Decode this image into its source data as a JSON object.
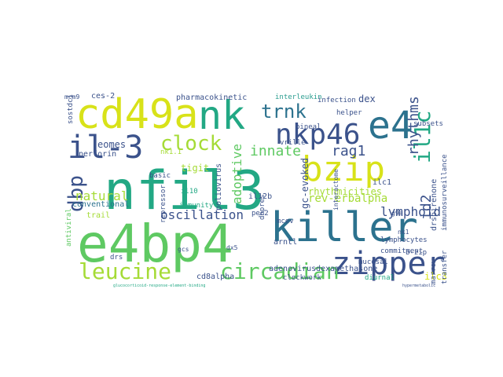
{
  "colors": {
    "yellow": "#d8e219",
    "lime": "#a5db36",
    "green": "#5ec962",
    "teal": "#22a884",
    "aqua": "#2a9d8f",
    "blue": "#2c728e",
    "indigo": "#3b528b",
    "purple": "#472d7b",
    "dark": "#440154"
  },
  "words": [
    "nfil3",
    "e4bp4",
    "killer",
    "bzip",
    "cd49a",
    "nk",
    "e4",
    "zipper",
    "il-3",
    "nkp46",
    "leucine",
    "circadian",
    "clock",
    "trnk",
    "il1c",
    "dbp",
    "rhythms",
    "innate",
    "rag1",
    "id2",
    "lymphoid",
    "rev-erbalpha",
    "natural",
    "oscillation",
    "adoptive",
    "eomes",
    "gc-evoked",
    "rhythmicities",
    "tigit",
    "ilc3",
    "cd8alpha",
    "perforin",
    "conventional",
    "pharmacokinetic",
    "interleukin",
    "dex",
    "ces-2",
    "adenovirus",
    "dexamethasone",
    "diurnal",
    "lymphocytes",
    "subsets",
    "arntl",
    "immunity",
    "commitment",
    "mucosal",
    "helper",
    "infection",
    "nk1.1",
    "basic",
    "drspirenone",
    "immunosurveillance",
    "sostdc1",
    "mcev",
    "trail",
    "il10",
    "il12b",
    "ilc1",
    "poliovirus",
    "repressor",
    "clockwork",
    "b-zip",
    "antiviral",
    "vrille",
    "pineal",
    "interactome",
    "dbpres",
    "per2",
    "marrow",
    "transfer",
    "g9a",
    "mcm9",
    "dx5",
    "drs",
    "gcs",
    "nk1",
    "glucocorticoid-response-element-binding",
    "hypermetabolic"
  ]
}
